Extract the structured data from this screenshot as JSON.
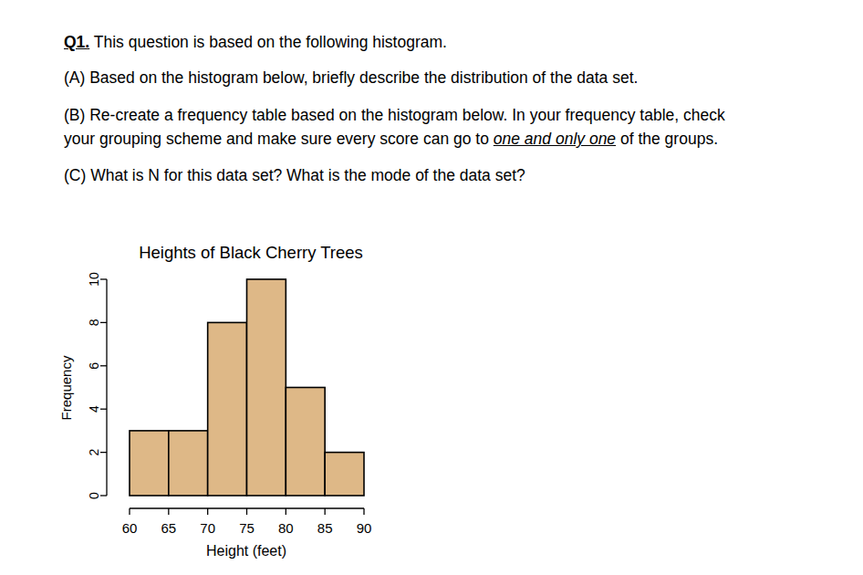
{
  "document": {
    "lines": [
      [
        {
          "text": "Q1.",
          "bold": true,
          "underline": true
        },
        {
          "text": " This question is based on the following histogram."
        }
      ],
      [
        {
          "text": "(A) Based on the histogram below, briefly describe the distribution of the data set."
        }
      ],
      [
        {
          "text": "(B) Re-create a frequency table based on the histogram below. In your frequency table, check"
        }
      ],
      [
        {
          "text": "your grouping scheme and make sure every score can go to "
        },
        {
          "text": "one and only one",
          "italic": true,
          "underline": true
        },
        {
          "text": " of the groups."
        }
      ],
      [
        {
          "text": "(C) What is N for this data set? What is the mode of the data set?"
        }
      ]
    ]
  },
  "chart_data": {
    "type": "histogram",
    "title": "Heights of Black Cherry Trees",
    "x_label": "Height (feet)",
    "y_label": "Frequency",
    "bins": [
      60,
      65,
      70,
      75,
      80,
      85,
      90
    ],
    "values": [
      3,
      3,
      8,
      10,
      5,
      2
    ],
    "color": "#deb887",
    "xlim": [
      60,
      90
    ],
    "xticks": [
      60,
      65,
      70,
      75,
      80,
      85,
      90
    ],
    "ylim": [
      0,
      10
    ],
    "yticks": [
      0,
      2,
      4,
      6,
      8,
      10
    ],
    "grid": false
  }
}
